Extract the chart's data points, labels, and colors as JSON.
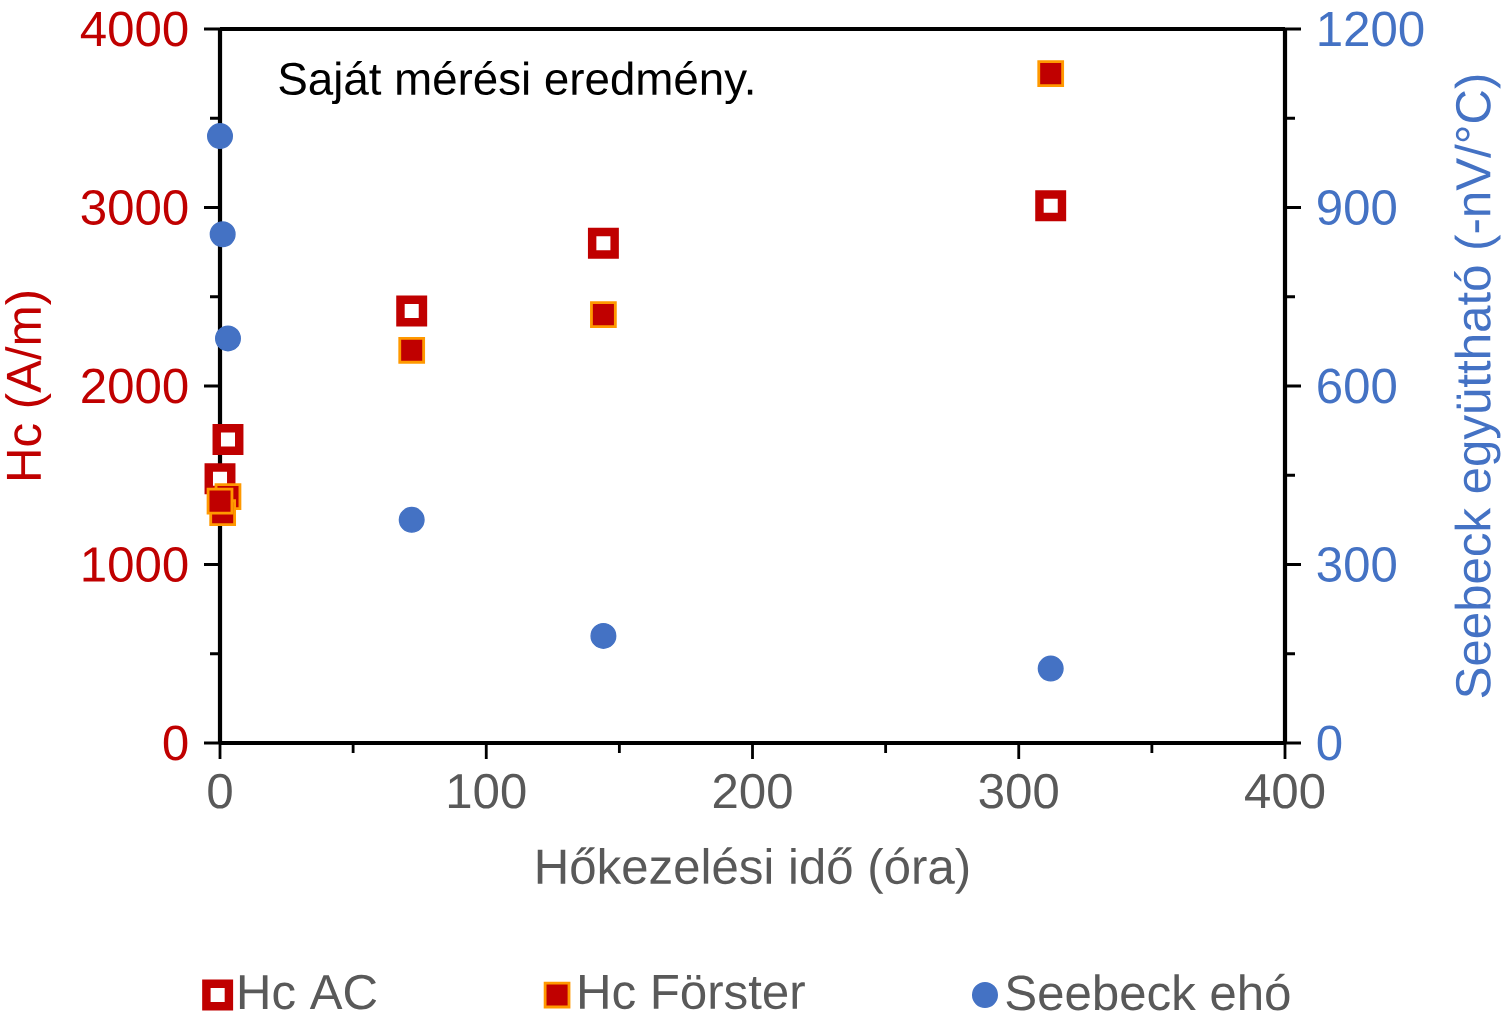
{
  "chart_data": {
    "type": "scatter",
    "xlabel": "Hőkezelési idő (óra)",
    "ylabel": "Hc (A/m)",
    "y2label": "Seebeck együttható (-nV/°C)",
    "annotations": [
      "Saját mérési eredmény."
    ],
    "xlim": [
      0,
      400
    ],
    "xticks": [
      0,
      100,
      200,
      300,
      400
    ],
    "ylim": [
      0,
      4000
    ],
    "yticks": [
      0,
      1000,
      2000,
      3000,
      4000
    ],
    "y2lim": [
      0,
      1200
    ],
    "y2ticks": [
      0,
      300,
      600,
      900,
      1200
    ],
    "legend": "bottom",
    "marker": "square",
    "series": [
      {
        "name": "Hc AC",
        "color": "#c00000",
        "x": [
          0,
          3,
          72,
          144,
          312
        ],
        "values": [
          1480,
          1700,
          2420,
          2800,
          3010
        ]
      },
      {
        "name": "Hc Förster",
        "color": "#c00000",
        "x": [
          0,
          1,
          3,
          72,
          144,
          312
        ],
        "values": [
          1355,
          1290,
          1380,
          2200,
          2400,
          3750
        ]
      },
      {
        "name": "Seebeck ehó",
        "color": "#4472c4",
        "axis": "y2",
        "marker": "circle",
        "x": [
          0,
          1,
          3,
          72,
          144,
          312
        ],
        "values": [
          1020,
          855,
          680,
          375,
          180,
          125
        ]
      }
    ]
  }
}
